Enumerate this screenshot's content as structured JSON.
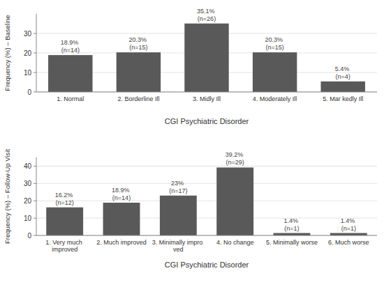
{
  "chart_data": [
    {
      "type": "bar",
      "categories": [
        "1. Normal",
        "2. Borderline Ill",
        "3. Midly Ill",
        "4. Moderately Ill",
        "5. Mar kedly Ill"
      ],
      "values": [
        18.9,
        20.3,
        35.1,
        20.3,
        5.4
      ],
      "value_labels": [
        "18.9%\n(n=14)",
        "20.3%\n(n=15)",
        "35.1%\n(n=26)",
        "20.3%\n(n=15)",
        "5.4%\n(n=4)"
      ],
      "data_labels": true,
      "color": "#595959",
      "xlabel": "CGI Psychiatric Disorder",
      "ylabel": "Frequency (%) – Baseline",
      "ylim": [
        0,
        40
      ],
      "yticks": [
        0,
        10,
        20,
        30
      ],
      "grid": true
    },
    {
      "type": "bar",
      "categories": [
        "1. Very much improved",
        "2. Much improved",
        "3. Minimally impro ved",
        "4. No change",
        "5. Minimally worse",
        "6. Much worse"
      ],
      "values": [
        16.2,
        18.9,
        23.0,
        39.2,
        1.4,
        1.4
      ],
      "value_labels": [
        "16.2%\n(n=12)",
        "18.9%\n(n=14)",
        "23%\n(n=17)",
        "39.2%\n(n=29)",
        "1.4%\n(n=1)",
        "1.4%\n(n=1)"
      ],
      "data_labels": true,
      "color": "#595959",
      "xlabel": "CGI Psychiatric Disorder",
      "ylabel": "Frequency (%) – Follow-Up Visit",
      "ylim": [
        0,
        45
      ],
      "yticks": [
        0,
        10,
        20,
        30,
        40
      ],
      "grid": true
    }
  ]
}
